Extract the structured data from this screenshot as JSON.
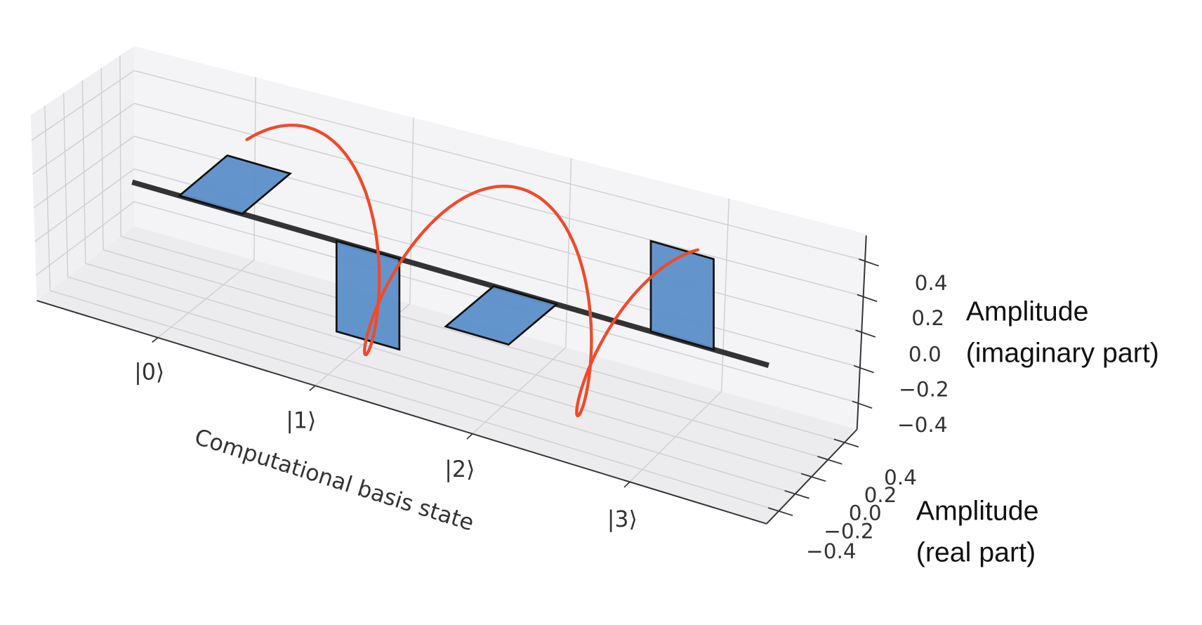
{
  "chart_data": {
    "type": "bar3d",
    "categories": [
      "|0⟩",
      "|1⟩",
      "|2⟩",
      "|3⟩"
    ],
    "series": [
      {
        "values_real": [
          0.5,
          0.0,
          -0.5,
          0.0
        ],
        "values_imag": [
          0.0,
          -0.5,
          0.0,
          0.5
        ]
      }
    ],
    "xlabel": "Computational basis state",
    "ylabel": "Amplitude (real part)",
    "zlabel": "Amplitude (imaginary part)",
    "ylabel_lines": [
      "Amplitude",
      "(real part)"
    ],
    "zlabel_lines": [
      "Amplitude",
      "(imaginary part)"
    ],
    "y_ticks": [
      "0.4",
      "0.2",
      "0.0",
      "−0.2",
      "−0.4"
    ],
    "z_ticks": [
      "0.4",
      "0.2",
      "0.0",
      "−0.2",
      "−0.4"
    ],
    "ylim": [
      -0.5,
      0.5
    ],
    "zlim": [
      -0.5,
      0.5
    ],
    "grid": true,
    "colors": {
      "bar": "#5b8fc9",
      "bar_edge": "#111111",
      "axis_line": "#333333",
      "helix": "#f04a2a"
    }
  }
}
